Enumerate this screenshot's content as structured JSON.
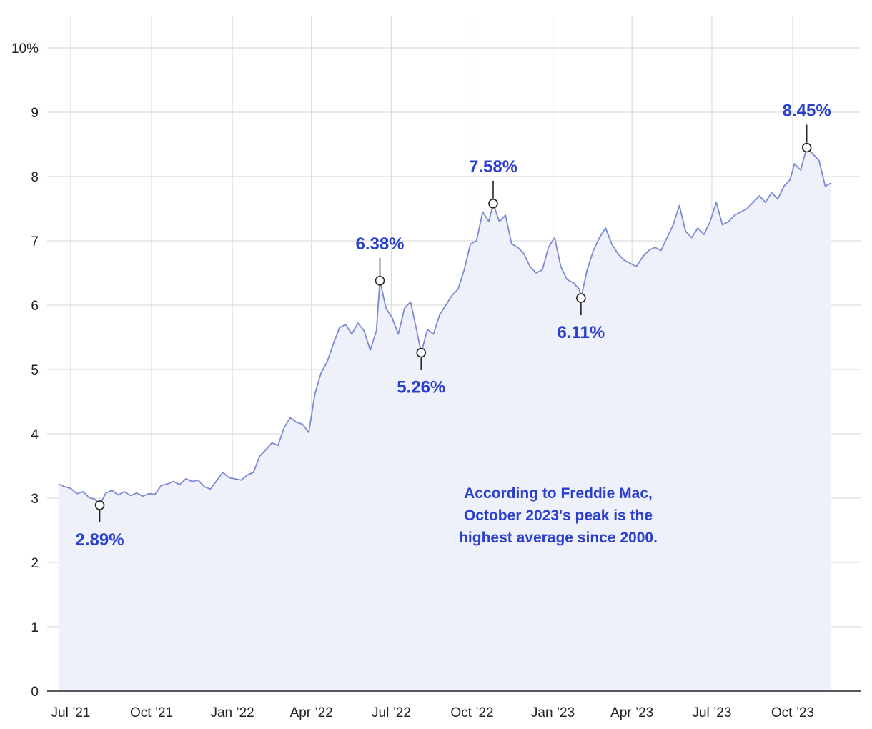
{
  "chart_data": {
    "type": "area",
    "title": "",
    "xlabel": "",
    "ylabel": "",
    "ylim": [
      0,
      10
    ],
    "y_ticks": [
      {
        "value": 0,
        "label": "0"
      },
      {
        "value": 1,
        "label": "1"
      },
      {
        "value": 2,
        "label": "2"
      },
      {
        "value": 3,
        "label": "3"
      },
      {
        "value": 4,
        "label": "4"
      },
      {
        "value": 5,
        "label": "5"
      },
      {
        "value": 6,
        "label": "6"
      },
      {
        "value": 7,
        "label": "7"
      },
      {
        "value": 8,
        "label": "8"
      },
      {
        "value": 9,
        "label": "9"
      },
      {
        "value": 10,
        "label": "10%"
      }
    ],
    "x_ticks": [
      {
        "date": "2021-07-01",
        "label": "Jul ’21"
      },
      {
        "date": "2021-10-01",
        "label": "Oct ’21"
      },
      {
        "date": "2022-01-01",
        "label": "Jan ’22"
      },
      {
        "date": "2022-04-01",
        "label": "Apr ’22"
      },
      {
        "date": "2022-07-01",
        "label": "Jul ’22"
      },
      {
        "date": "2022-10-01",
        "label": "Oct ’22"
      },
      {
        "date": "2023-01-01",
        "label": "Jan ’23"
      },
      {
        "date": "2023-04-01",
        "label": "Apr ’23"
      },
      {
        "date": "2023-07-01",
        "label": "Jul ’23"
      },
      {
        "date": "2023-10-01",
        "label": "Oct ’23"
      }
    ],
    "grid": true,
    "colors": {
      "line": "#7b8ad3",
      "area": "#eef0fa",
      "annotation": "#2b3fcf"
    },
    "series": [
      {
        "points": [
          [
            "2021-06-17",
            3.22
          ],
          [
            "2021-06-24",
            3.18
          ],
          [
            "2021-07-01",
            3.15
          ],
          [
            "2021-07-08",
            3.07
          ],
          [
            "2021-07-15",
            3.1
          ],
          [
            "2021-07-22",
            3.01
          ],
          [
            "2021-07-29",
            2.98
          ],
          [
            "2021-08-03",
            2.89
          ],
          [
            "2021-08-10",
            3.08
          ],
          [
            "2021-08-17",
            3.12
          ],
          [
            "2021-08-24",
            3.05
          ],
          [
            "2021-08-31",
            3.1
          ],
          [
            "2021-09-07",
            3.04
          ],
          [
            "2021-09-14",
            3.08
          ],
          [
            "2021-09-21",
            3.03
          ],
          [
            "2021-09-28",
            3.07
          ],
          [
            "2021-10-05",
            3.06
          ],
          [
            "2021-10-12",
            3.2
          ],
          [
            "2021-10-19",
            3.22
          ],
          [
            "2021-10-26",
            3.26
          ],
          [
            "2021-11-02",
            3.21
          ],
          [
            "2021-11-09",
            3.3
          ],
          [
            "2021-11-16",
            3.26
          ],
          [
            "2021-11-23",
            3.28
          ],
          [
            "2021-11-30",
            3.18
          ],
          [
            "2021-12-07",
            3.14
          ],
          [
            "2021-12-14",
            3.27
          ],
          [
            "2021-12-21",
            3.4
          ],
          [
            "2021-12-28",
            3.32
          ],
          [
            "2022-01-04",
            3.3
          ],
          [
            "2022-01-11",
            3.28
          ],
          [
            "2022-01-18",
            3.36
          ],
          [
            "2022-01-25",
            3.4
          ],
          [
            "2022-02-01",
            3.65
          ],
          [
            "2022-02-08",
            3.75
          ],
          [
            "2022-02-15",
            3.86
          ],
          [
            "2022-02-22",
            3.82
          ],
          [
            "2022-03-01",
            4.1
          ],
          [
            "2022-03-08",
            4.25
          ],
          [
            "2022-03-15",
            4.18
          ],
          [
            "2022-03-22",
            4.15
          ],
          [
            "2022-03-29",
            4.02
          ],
          [
            "2022-04-05",
            4.62
          ],
          [
            "2022-04-12",
            4.95
          ],
          [
            "2022-04-19",
            5.12
          ],
          [
            "2022-04-26",
            5.4
          ],
          [
            "2022-05-03",
            5.65
          ],
          [
            "2022-05-10",
            5.7
          ],
          [
            "2022-05-17",
            5.55
          ],
          [
            "2022-05-24",
            5.72
          ],
          [
            "2022-05-31",
            5.6
          ],
          [
            "2022-06-07",
            5.3
          ],
          [
            "2022-06-14",
            5.6
          ],
          [
            "2022-06-18",
            6.38
          ],
          [
            "2022-06-25",
            5.95
          ],
          [
            "2022-07-02",
            5.8
          ],
          [
            "2022-07-09",
            5.55
          ],
          [
            "2022-07-16",
            5.95
          ],
          [
            "2022-07-23",
            6.05
          ],
          [
            "2022-07-30",
            5.6
          ],
          [
            "2022-08-04",
            5.26
          ],
          [
            "2022-08-11",
            5.62
          ],
          [
            "2022-08-18",
            5.55
          ],
          [
            "2022-08-25",
            5.85
          ],
          [
            "2022-09-01",
            6.0
          ],
          [
            "2022-09-08",
            6.15
          ],
          [
            "2022-09-15",
            6.25
          ],
          [
            "2022-09-22",
            6.55
          ],
          [
            "2022-09-29",
            6.95
          ],
          [
            "2022-10-06",
            7.0
          ],
          [
            "2022-10-13",
            7.45
          ],
          [
            "2022-10-20",
            7.3
          ],
          [
            "2022-10-25",
            7.58
          ],
          [
            "2022-11-01",
            7.3
          ],
          [
            "2022-11-08",
            7.4
          ],
          [
            "2022-11-15",
            6.95
          ],
          [
            "2022-11-22",
            6.9
          ],
          [
            "2022-11-29",
            6.8
          ],
          [
            "2022-12-06",
            6.6
          ],
          [
            "2022-12-13",
            6.5
          ],
          [
            "2022-12-20",
            6.55
          ],
          [
            "2022-12-27",
            6.9
          ],
          [
            "2023-01-03",
            7.05
          ],
          [
            "2023-01-10",
            6.6
          ],
          [
            "2023-01-17",
            6.4
          ],
          [
            "2023-01-24",
            6.35
          ],
          [
            "2023-01-31",
            6.25
          ],
          [
            "2023-02-02",
            6.11
          ],
          [
            "2023-02-09",
            6.55
          ],
          [
            "2023-02-16",
            6.85
          ],
          [
            "2023-02-23",
            7.05
          ],
          [
            "2023-03-02",
            7.2
          ],
          [
            "2023-03-09",
            6.95
          ],
          [
            "2023-03-16",
            6.8
          ],
          [
            "2023-03-23",
            6.7
          ],
          [
            "2023-03-30",
            6.65
          ],
          [
            "2023-04-06",
            6.6
          ],
          [
            "2023-04-13",
            6.75
          ],
          [
            "2023-04-20",
            6.85
          ],
          [
            "2023-04-27",
            6.9
          ],
          [
            "2023-05-04",
            6.85
          ],
          [
            "2023-05-11",
            7.05
          ],
          [
            "2023-05-18",
            7.25
          ],
          [
            "2023-05-25",
            7.55
          ],
          [
            "2023-06-01",
            7.15
          ],
          [
            "2023-06-08",
            7.05
          ],
          [
            "2023-06-15",
            7.2
          ],
          [
            "2023-06-22",
            7.1
          ],
          [
            "2023-06-29",
            7.3
          ],
          [
            "2023-07-06",
            7.6
          ],
          [
            "2023-07-13",
            7.25
          ],
          [
            "2023-07-20",
            7.3
          ],
          [
            "2023-07-27",
            7.4
          ],
          [
            "2023-08-03",
            7.45
          ],
          [
            "2023-08-10",
            7.5
          ],
          [
            "2023-08-17",
            7.6
          ],
          [
            "2023-08-24",
            7.7
          ],
          [
            "2023-08-31",
            7.6
          ],
          [
            "2023-09-07",
            7.75
          ],
          [
            "2023-09-14",
            7.65
          ],
          [
            "2023-09-21",
            7.85
          ],
          [
            "2023-09-28",
            7.95
          ],
          [
            "2023-10-03",
            8.2
          ],
          [
            "2023-10-10",
            8.1
          ],
          [
            "2023-10-17",
            8.45
          ],
          [
            "2023-10-24",
            8.35
          ],
          [
            "2023-10-31",
            8.25
          ],
          [
            "2023-11-07",
            7.85
          ],
          [
            "2023-11-14",
            7.9
          ]
        ]
      }
    ],
    "annotations": [
      {
        "date": "2021-08-03",
        "value": 2.89,
        "label": "2.89%",
        "position": "below"
      },
      {
        "date": "2022-06-18",
        "value": 6.38,
        "label": "6.38%",
        "position": "above"
      },
      {
        "date": "2022-08-04",
        "value": 5.26,
        "label": "5.26%",
        "position": "below"
      },
      {
        "date": "2022-10-25",
        "value": 7.58,
        "label": "7.58%",
        "position": "above"
      },
      {
        "date": "2023-02-02",
        "value": 6.11,
        "label": "6.11%",
        "position": "below"
      },
      {
        "date": "2023-10-17",
        "value": 8.45,
        "label": "8.45%",
        "position": "above"
      }
    ],
    "note": [
      "According to Freddie Mac,",
      "October 2023's peak is the",
      "highest average since 2000."
    ]
  }
}
